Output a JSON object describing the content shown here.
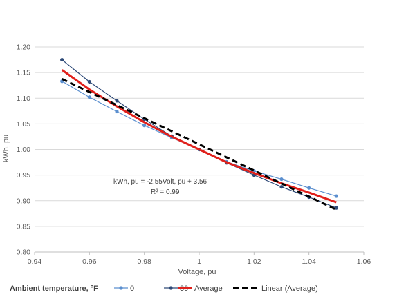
{
  "chart_data": {
    "type": "line",
    "xlabel": "Voltage, pu",
    "ylabel": "kWh, pu",
    "xlim": [
      0.94,
      1.06
    ],
    "ylim": [
      0.8,
      1.2
    ],
    "x_ticks": [
      "0.94",
      "0.96",
      "0.98",
      "1",
      "1.02",
      "1.04",
      "1.06"
    ],
    "y_ticks": [
      "0.80",
      "0.85",
      "0.90",
      "0.95",
      "1.00",
      "1.05",
      "1.10",
      "1.15",
      "1.20"
    ],
    "grid": "horizontal",
    "legend_position": "bottom",
    "legend_title": "Ambient temperature, °F",
    "annotation": {
      "line1": "kWh, pu = -2.55Volt, pu + 3.56",
      "line2": "R² = 0.99"
    },
    "series": [
      {
        "name": "0",
        "color": "#5b8fcf",
        "marker": "circle",
        "x": [
          0.95,
          0.96,
          0.97,
          0.98,
          0.99,
          1.0,
          1.01,
          1.02,
          1.03,
          1.04,
          1.05
        ],
        "y": [
          1.133,
          1.102,
          1.074,
          1.047,
          1.023,
          1.0,
          0.976,
          0.958,
          0.942,
          0.925,
          0.909
        ]
      },
      {
        "name": "30",
        "color": "#2e4a78",
        "marker": "circle",
        "x": [
          0.95,
          0.96,
          0.97,
          0.98,
          0.99,
          1.0,
          1.01,
          1.02,
          1.03,
          1.04,
          1.05
        ],
        "y": [
          1.175,
          1.132,
          1.095,
          1.059,
          1.026,
          1.0,
          0.974,
          0.95,
          0.927,
          0.907,
          0.886
        ]
      },
      {
        "name": "Average",
        "color": "#e0201b",
        "marker": "none",
        "x": [
          0.95,
          0.96,
          0.97,
          0.98,
          0.99,
          1.0,
          1.01,
          1.02,
          1.03,
          1.04,
          1.05
        ],
        "y": [
          1.155,
          1.117,
          1.084,
          1.053,
          1.025,
          1.0,
          0.975,
          0.954,
          0.934,
          0.916,
          0.897
        ]
      },
      {
        "name": "Linear (Average)",
        "color": "#000000",
        "marker": "none",
        "dashed": true,
        "x": [
          0.95,
          1.05
        ],
        "y": [
          1.1375,
          0.8825
        ]
      }
    ]
  }
}
